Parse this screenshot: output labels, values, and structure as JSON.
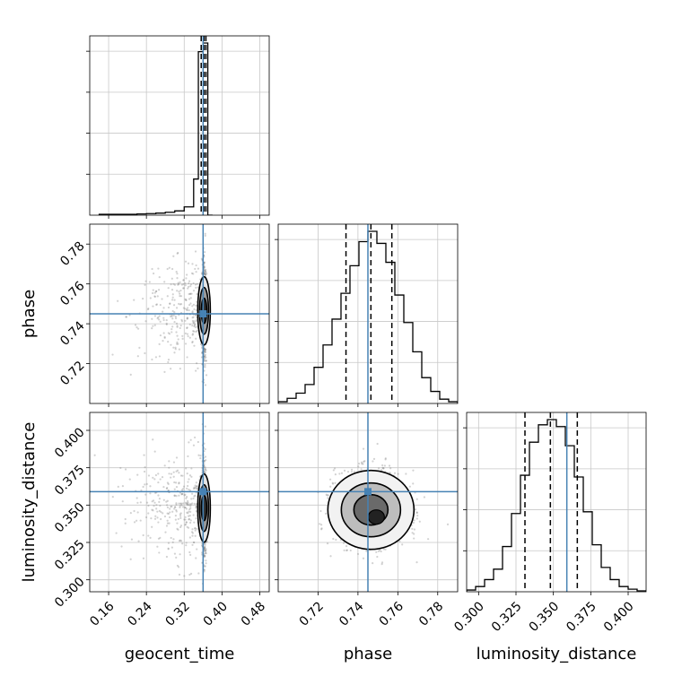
{
  "chart_data": {
    "type": "corner",
    "parameters": [
      "geocent_time",
      "phase",
      "luminosity_distance"
    ],
    "colors": {
      "truth": "#4682b4",
      "hist": "#000000",
      "grid": "#c8c8c8",
      "points": "#7f7f7f"
    },
    "truths": {
      "geocent_time": 0.36,
      "phase": 0.745,
      "luminosity_distance": 0.359
    },
    "ranges": {
      "geocent_time": [
        0.12,
        0.5
      ],
      "phase": [
        0.7,
        0.79
      ],
      "luminosity_distance": [
        0.292,
        0.412
      ]
    },
    "ticks": {
      "geocent_time": [
        0.16,
        0.24,
        0.32,
        0.4,
        0.48
      ],
      "phase": [
        0.72,
        0.74,
        0.76,
        0.78
      ],
      "luminosity_distance": [
        0.3,
        0.325,
        0.35,
        0.375,
        0.4
      ]
    },
    "tick_labels": {
      "geocent_time": [
        "0.16",
        "0.24",
        "0.32",
        "0.40",
        "0.48"
      ],
      "phase": [
        "0.72",
        "0.74",
        "0.76",
        "0.78"
      ],
      "luminosity_distance": [
        "0.300",
        "0.325",
        "0.350",
        "0.375",
        "0.400"
      ]
    },
    "quantiles": {
      "geocent_time": [
        0.356,
        0.362,
        0.366
      ],
      "phase": [
        0.734,
        0.7465,
        0.757
      ],
      "luminosity_distance": [
        0.331,
        0.348,
        0.366
      ]
    },
    "histograms": {
      "geocent_time": {
        "edges": [
          0.14,
          0.16,
          0.18,
          0.2,
          0.22,
          0.24,
          0.26,
          0.28,
          0.3,
          0.32,
          0.34,
          0.35,
          0.36,
          0.37,
          0.38
        ],
        "counts": [
          0.005,
          0.005,
          0.005,
          0.005,
          0.007,
          0.009,
          0.012,
          0.017,
          0.025,
          0.048,
          0.21,
          0.95,
          1.0,
          0.0
        ]
      },
      "phase": {
        "edges": [
          0.7,
          0.7045,
          0.709,
          0.7135,
          0.718,
          0.7225,
          0.727,
          0.7315,
          0.736,
          0.7405,
          0.745,
          0.7495,
          0.754,
          0.7585,
          0.763,
          0.7675,
          0.772,
          0.7765,
          0.781,
          0.7855,
          0.79
        ],
        "counts": [
          0.01,
          0.03,
          0.06,
          0.11,
          0.21,
          0.34,
          0.49,
          0.64,
          0.8,
          0.94,
          1.0,
          0.93,
          0.82,
          0.63,
          0.47,
          0.3,
          0.15,
          0.07,
          0.025,
          0.01
        ]
      },
      "luminosity_distance": {
        "edges": [
          0.292,
          0.298,
          0.304,
          0.31,
          0.316,
          0.322,
          0.328,
          0.334,
          0.34,
          0.346,
          0.352,
          0.358,
          0.364,
          0.37,
          0.376,
          0.382,
          0.388,
          0.394,
          0.4,
          0.406,
          0.412
        ],
        "counts": [
          0.01,
          0.03,
          0.07,
          0.13,
          0.26,
          0.45,
          0.67,
          0.86,
          0.96,
          0.99,
          0.95,
          0.84,
          0.66,
          0.46,
          0.27,
          0.14,
          0.07,
          0.03,
          0.015,
          0.005
        ]
      }
    }
  }
}
